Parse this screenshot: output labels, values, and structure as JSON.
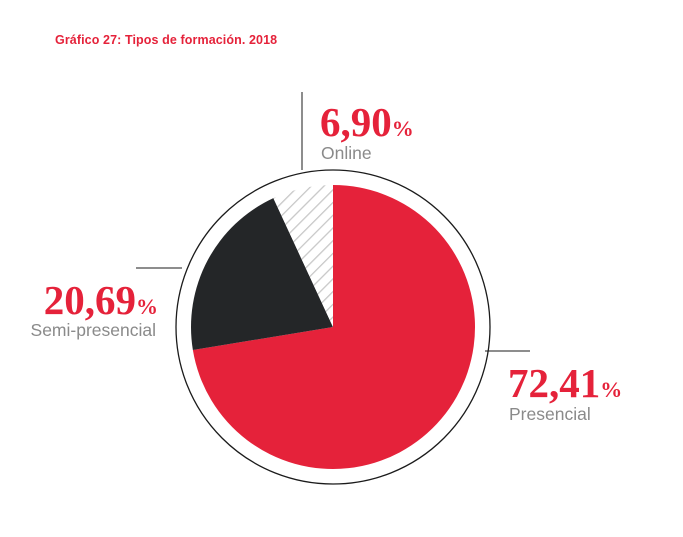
{
  "chart_data": {
    "type": "pie",
    "title": "Gráfico 27: Tipos de formación. 2018",
    "slices": [
      {
        "label": "Presencial",
        "value": 72.41,
        "value_label": "72,41",
        "unit": "%",
        "color": "#e5223a",
        "pattern": "solid"
      },
      {
        "label": "Semi-presencial",
        "value": 20.69,
        "value_label": "20,69",
        "unit": "%",
        "color": "#242628",
        "pattern": "solid"
      },
      {
        "label": "Online",
        "value": 6.9,
        "value_label": "6,90",
        "unit": "%",
        "color": "#ffffff",
        "pattern": "diagonal-hatch"
      }
    ],
    "start_angle_deg": 0,
    "direction": "clockwise",
    "legend": "none",
    "label_color": "#e5223a",
    "category_color": "#8a8a8a",
    "outline_color": "#1b1b1b"
  }
}
